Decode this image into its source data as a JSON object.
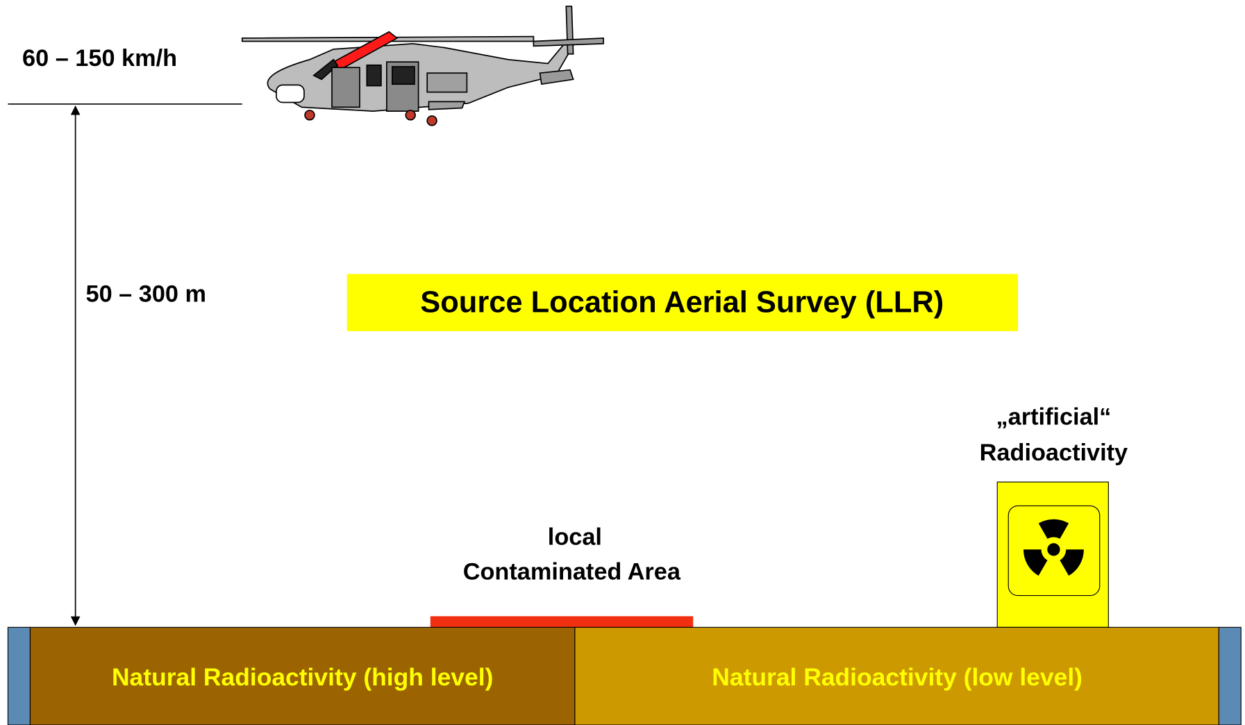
{
  "speed": "60 – 150 km/h",
  "altitude": "50 – 300 m",
  "title": "Source Location Aerial Survey (LLR)",
  "local_area": [
    "local",
    "Contaminated Area"
  ],
  "artificial": [
    "„artificial“",
    "Radioactivity"
  ],
  "ground": {
    "high": "Natural Radioactivity (high level)",
    "low": "Natural Radioactivity (low level)"
  }
}
